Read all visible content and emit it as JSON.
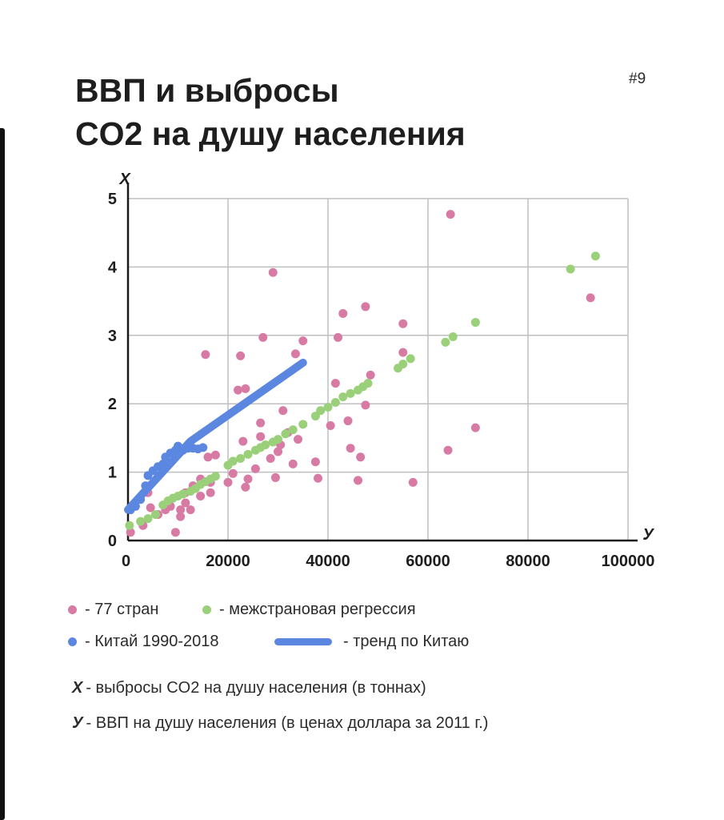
{
  "header": {
    "title_line1": "ВВП и выбросы",
    "title_line2": "CO2 на душу населения",
    "page_number": "#9"
  },
  "colors": {
    "countries": "#d77ba5",
    "regression": "#9bd07a",
    "china": "#5b87e0",
    "trend": "#5b87e0",
    "grid": "#bfbfbf",
    "axis": "#1a1a1a"
  },
  "chart_data": {
    "type": "scatter",
    "xlabel": "У",
    "ylabel": "Х",
    "xlim": [
      0,
      100000
    ],
    "ylim": [
      0,
      5
    ],
    "x_ticks": [
      "0",
      "20000",
      "40000",
      "60000",
      "80000",
      "100000"
    ],
    "y_ticks": [
      "0",
      "1",
      "2",
      "3",
      "4",
      "5"
    ],
    "grid": true,
    "series": [
      {
        "name": "77 стран",
        "points": [
          [
            500,
            0.12
          ],
          [
            3000,
            0.22
          ],
          [
            4500,
            0.48
          ],
          [
            4000,
            0.7
          ],
          [
            6000,
            0.38
          ],
          [
            7500,
            0.45
          ],
          [
            8500,
            0.5
          ],
          [
            9500,
            0.12
          ],
          [
            10500,
            0.35
          ],
          [
            10500,
            0.45
          ],
          [
            11500,
            0.55
          ],
          [
            11500,
            0.7
          ],
          [
            12500,
            0.45
          ],
          [
            13000,
            0.8
          ],
          [
            14500,
            0.9
          ],
          [
            14500,
            0.65
          ],
          [
            15500,
            2.72
          ],
          [
            16000,
            1.22
          ],
          [
            16500,
            0.7
          ],
          [
            17500,
            1.25
          ],
          [
            16500,
            0.85
          ],
          [
            20000,
            0.85
          ],
          [
            21000,
            0.98
          ],
          [
            22000,
            2.2
          ],
          [
            22500,
            2.7
          ],
          [
            23000,
            1.45
          ],
          [
            23500,
            0.78
          ],
          [
            23500,
            2.22
          ],
          [
            24000,
            0.9
          ],
          [
            25500,
            1.05
          ],
          [
            26500,
            1.52
          ],
          [
            26500,
            1.72
          ],
          [
            27000,
            2.97
          ],
          [
            28500,
            1.2
          ],
          [
            29000,
            3.92
          ],
          [
            29500,
            0.92
          ],
          [
            30000,
            1.3
          ],
          [
            30500,
            1.4
          ],
          [
            31000,
            1.9
          ],
          [
            32000,
            1.58
          ],
          [
            33000,
            1.12
          ],
          [
            33500,
            2.73
          ],
          [
            34000,
            1.48
          ],
          [
            35000,
            2.92
          ],
          [
            37500,
            1.15
          ],
          [
            38000,
            0.91
          ],
          [
            40500,
            1.68
          ],
          [
            41500,
            2.3
          ],
          [
            42000,
            2.97
          ],
          [
            43000,
            3.32
          ],
          [
            44000,
            1.75
          ],
          [
            44500,
            1.35
          ],
          [
            46000,
            0.88
          ],
          [
            46500,
            1.22
          ],
          [
            47500,
            1.98
          ],
          [
            47500,
            3.42
          ],
          [
            48500,
            2.42
          ],
          [
            55000,
            3.17
          ],
          [
            55000,
            2.75
          ],
          [
            57000,
            0.85
          ],
          [
            64500,
            4.77
          ],
          [
            64000,
            1.32
          ],
          [
            69500,
            1.65
          ],
          [
            92500,
            3.55
          ]
        ]
      },
      {
        "name": "межстрановая регрессия",
        "points": [
          [
            300,
            0.22
          ],
          [
            2500,
            0.28
          ],
          [
            4000,
            0.32
          ],
          [
            5500,
            0.38
          ],
          [
            7000,
            0.52
          ],
          [
            8000,
            0.58
          ],
          [
            9000,
            0.62
          ],
          [
            10000,
            0.65
          ],
          [
            11000,
            0.68
          ],
          [
            12500,
            0.72
          ],
          [
            13500,
            0.76
          ],
          [
            14500,
            0.82
          ],
          [
            15500,
            0.86
          ],
          [
            16500,
            0.9
          ],
          [
            17500,
            0.94
          ],
          [
            20000,
            1.1
          ],
          [
            21000,
            1.16
          ],
          [
            22500,
            1.2
          ],
          [
            24000,
            1.26
          ],
          [
            25500,
            1.32
          ],
          [
            26500,
            1.36
          ],
          [
            27500,
            1.4
          ],
          [
            29000,
            1.44
          ],
          [
            30000,
            1.48
          ],
          [
            31500,
            1.56
          ],
          [
            33000,
            1.62
          ],
          [
            35000,
            1.7
          ],
          [
            37500,
            1.82
          ],
          [
            38500,
            1.9
          ],
          [
            40000,
            1.95
          ],
          [
            41500,
            2.02
          ],
          [
            43000,
            2.1
          ],
          [
            44500,
            2.15
          ],
          [
            46000,
            2.2
          ],
          [
            47000,
            2.25
          ],
          [
            48000,
            2.3
          ],
          [
            54000,
            2.52
          ],
          [
            55000,
            2.58
          ],
          [
            56500,
            2.66
          ],
          [
            63500,
            2.9
          ],
          [
            65000,
            2.98
          ],
          [
            69500,
            3.19
          ],
          [
            88500,
            3.97
          ],
          [
            93500,
            4.16
          ]
        ]
      },
      {
        "name": "Китай 1990-2018",
        "points": [
          [
            500,
            0.45
          ],
          [
            1500,
            0.5
          ],
          [
            2500,
            0.6
          ],
          [
            3500,
            0.8
          ],
          [
            4000,
            0.95
          ],
          [
            5000,
            1.02
          ],
          [
            6000,
            1.08
          ],
          [
            7000,
            1.12
          ],
          [
            7500,
            1.22
          ],
          [
            8500,
            1.28
          ],
          [
            9500,
            1.32
          ],
          [
            10000,
            1.38
          ],
          [
            11000,
            1.32
          ],
          [
            11500,
            1.36
          ],
          [
            12000,
            1.35
          ],
          [
            13000,
            1.35
          ],
          [
            14000,
            1.34
          ],
          [
            15000,
            1.36
          ]
        ]
      },
      {
        "name": "тренд по Китаю",
        "points": [
          [
            0,
            0.45
          ],
          [
            12500,
            1.45
          ],
          [
            35000,
            2.6
          ]
        ]
      }
    ]
  },
  "legend": {
    "countries_label": "- 77 стран",
    "regression_label": "- межстрановая регрессия",
    "china_label": "- Китай 1990-2018",
    "trend_label": "- тренд по Китаю"
  },
  "notes": {
    "x_key": "Х",
    "x_text": "- выбросы CO2 на душу населения (в тоннах)",
    "y_key": "У",
    "y_text": "- ВВП на душу населения (в ценах доллара за 2011 г.)"
  }
}
